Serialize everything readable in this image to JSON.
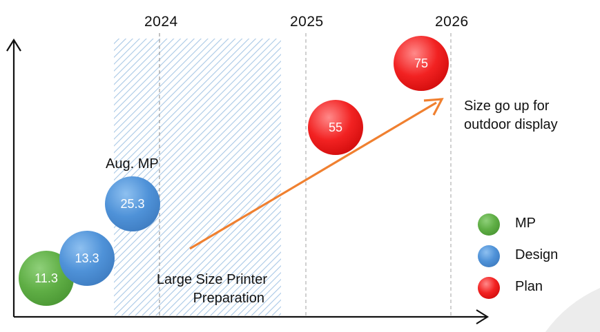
{
  "timeline": {
    "years": [
      "2024",
      "2025",
      "2026"
    ]
  },
  "bubbles": [
    {
      "value": "11.3",
      "status": "MP"
    },
    {
      "value": "13.3",
      "status": "Design"
    },
    {
      "value": "25.3",
      "status": "Design"
    },
    {
      "value": "55",
      "status": "Plan"
    },
    {
      "value": "75",
      "status": "Plan"
    }
  ],
  "annotations": {
    "aug_mp": "Aug. MP",
    "preparation_line1": "Large Size Printer",
    "preparation_line2": "Preparation",
    "trend_line1": "Size go up for",
    "trend_line2": "outdoor display"
  },
  "legend": [
    {
      "label": "MP",
      "color": "#4e9e3a"
    },
    {
      "label": "Design",
      "color": "#3f82cc"
    },
    {
      "label": "Plan",
      "color": "#e01a1a"
    }
  ],
  "colors": {
    "arrow": "#f08030",
    "hatch": "#a9c8e6",
    "axis": "#111111"
  }
}
